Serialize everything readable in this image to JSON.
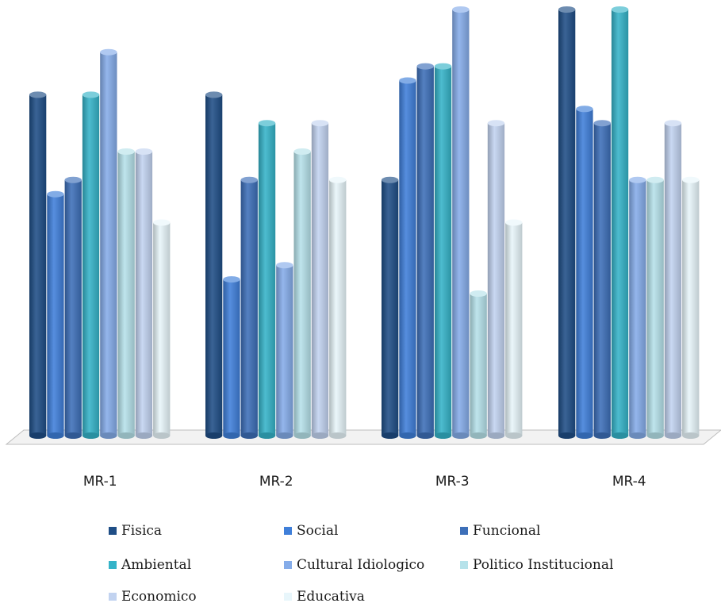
{
  "chart_data": {
    "type": "bar",
    "title": "",
    "xlabel": "",
    "ylabel": "",
    "ylim": [
      0,
      30
    ],
    "grid": false,
    "legend_position": "bottom",
    "categories": [
      "MR-1",
      "MR-2",
      "MR-3",
      "MR-4"
    ],
    "series": [
      {
        "name": "Fisica",
        "color": "#1f4e86",
        "values": [
          24,
          24,
          18,
          30
        ]
      },
      {
        "name": "Social",
        "color": "#3f7fd9",
        "values": [
          17,
          11,
          25,
          23
        ]
      },
      {
        "name": "Funcional",
        "color": "#3d6fb8",
        "values": [
          18,
          18,
          26,
          22
        ]
      },
      {
        "name": "Ambiental",
        "color": "#35b3c8",
        "values": [
          24,
          22,
          26,
          30
        ]
      },
      {
        "name": "Cultural Idiologico",
        "color": "#85ace9",
        "values": [
          27,
          12,
          30,
          18
        ]
      },
      {
        "name": "Politico Institucional",
        "color": "#b6e2ea",
        "values": [
          20,
          20,
          10,
          18
        ]
      },
      {
        "name": "Economico",
        "color": "#c2d3f0",
        "values": [
          20,
          22,
          22,
          22
        ]
      },
      {
        "name": "Educativa",
        "color": "#e8f6fb",
        "values": [
          15,
          18,
          15,
          18
        ]
      }
    ]
  }
}
